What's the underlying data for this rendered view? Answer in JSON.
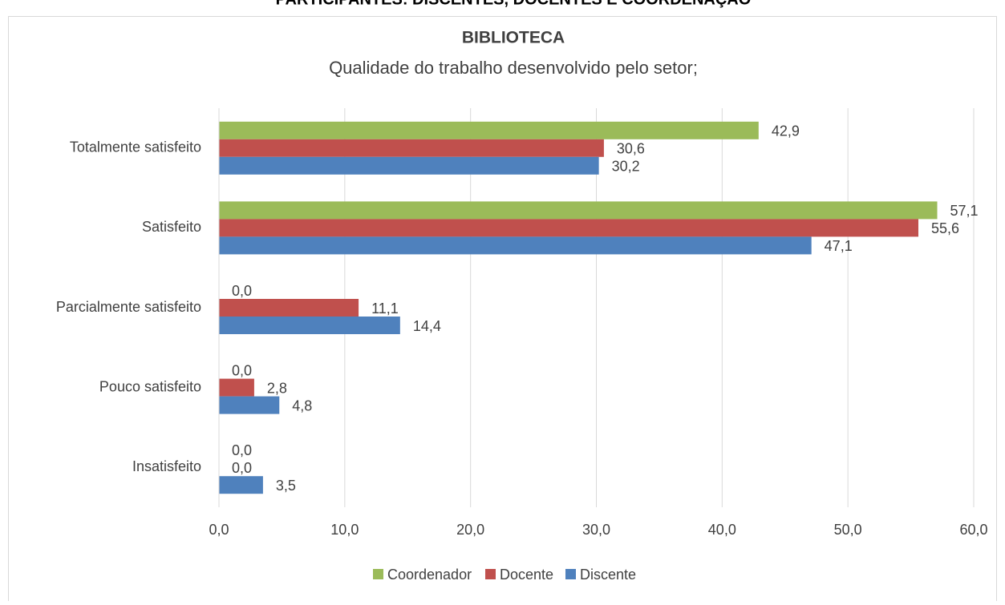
{
  "header": "PARTICIPANTES: DISCENTES, DOCENTES E COORDENAÇÃO",
  "chart_data": {
    "type": "hbar",
    "title": "BIBLIOTECA",
    "subtitle": "Qualidade do trabalho desenvolvido pelo setor;",
    "categories": [
      "Totalmente satisfeito",
      "Satisfeito",
      "Parcialmente satisfeito",
      "Pouco satisfeito",
      "Insatisfeito"
    ],
    "series": [
      {
        "name": "Coordenador",
        "color": "#9bbb59",
        "values": [
          42.9,
          57.1,
          0,
          0,
          0
        ],
        "value_labels": [
          "42,9",
          "57,1",
          "0,0",
          "0,0",
          "0,0"
        ]
      },
      {
        "name": "Docente",
        "color": "#c0504d",
        "values": [
          30.6,
          55.6,
          11.1,
          2.8,
          0
        ],
        "value_labels": [
          "30,6",
          "55,6",
          "11,1",
          "2,8",
          "0,0"
        ]
      },
      {
        "name": "Discente",
        "color": "#4f81bd",
        "values": [
          30.2,
          47.1,
          14.4,
          4.8,
          3.5
        ],
        "value_labels": [
          "30,2",
          "47,1",
          "14,4",
          "4,8",
          "3,5"
        ]
      }
    ],
    "xlim": [
      0,
      60
    ],
    "xticks": [
      {
        "value": 0,
        "label": "0,0"
      },
      {
        "value": 10,
        "label": "10,0"
      },
      {
        "value": 20,
        "label": "20,0"
      },
      {
        "value": 30,
        "label": "30,0"
      },
      {
        "value": 40,
        "label": "40,0"
      },
      {
        "value": 50,
        "label": "50,0"
      },
      {
        "value": 60,
        "label": "60,0"
      }
    ],
    "grid": true,
    "legend": "bottom"
  }
}
